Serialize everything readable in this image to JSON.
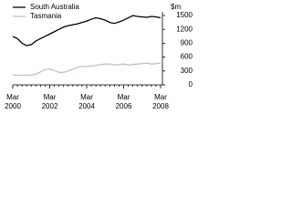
{
  "chart_data": {
    "type": "line",
    "y_axis_label": "$m",
    "categories": [
      "Mar 2000",
      null,
      null,
      null,
      null,
      null,
      null,
      null,
      "Mar 2002",
      null,
      null,
      null,
      null,
      null,
      null,
      null,
      "Mar 2004",
      null,
      null,
      null,
      null,
      null,
      null,
      null,
      "Mar 2006",
      null,
      null,
      null,
      null,
      null,
      null,
      null,
      "Mar 2008"
    ],
    "series": [
      {
        "name": "South Australia",
        "color": "#000000",
        "values": [
          1050,
          1000,
          900,
          850,
          870,
          950,
          1000,
          1050,
          1100,
          1150,
          1200,
          1250,
          1280,
          1300,
          1320,
          1350,
          1380,
          1420,
          1450,
          1430,
          1400,
          1350,
          1330,
          1360,
          1400,
          1450,
          1500,
          1480,
          1470,
          1460,
          1480,
          1470,
          1450
        ]
      },
      {
        "name": "Tasmania",
        "color": "#cbbcbc",
        "values": [
          220,
          210,
          205,
          210,
          215,
          230,
          280,
          330,
          340,
          310,
          270,
          270,
          300,
          340,
          380,
          400,
          400,
          410,
          420,
          440,
          450,
          450,
          430,
          440,
          450,
          430,
          440,
          450,
          460,
          470,
          450,
          460,
          470
        ]
      }
    ],
    "ylim": [
      0,
      1500
    ],
    "yticks": [
      0,
      300,
      600,
      900,
      1200,
      1500
    ],
    "legend": "top-left"
  }
}
